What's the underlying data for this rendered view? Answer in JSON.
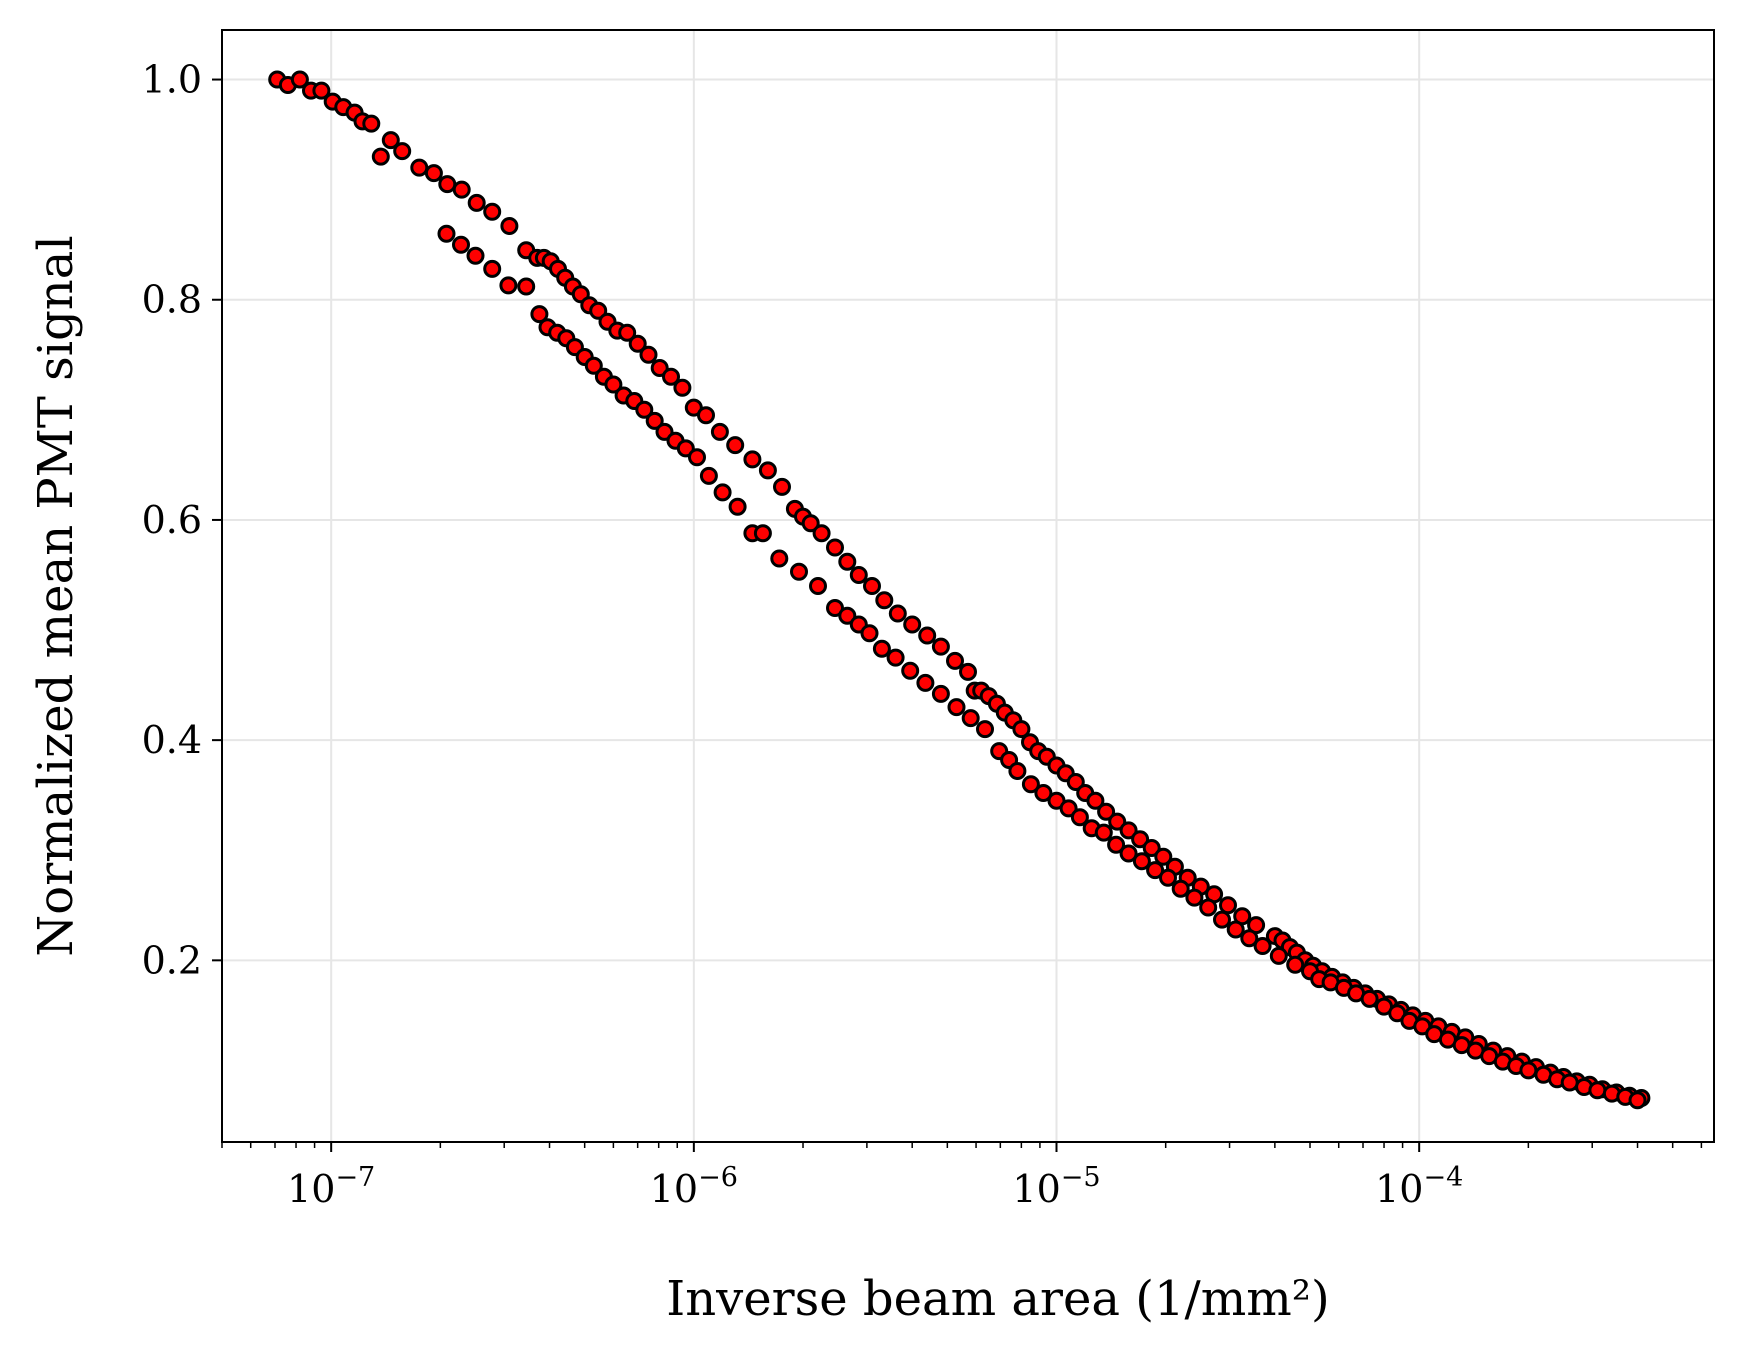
{
  "chart_data": {
    "type": "scatter",
    "title": "",
    "xlabel": "Inverse beam area (1/mm²)",
    "ylabel": "Normalized mean PMT signal",
    "xscale": "log",
    "xlim": [
      5e-08,
      0.00065
    ],
    "ylim": [
      0.035,
      1.045
    ],
    "grid": true,
    "legend": "none",
    "marker": {
      "face": "#ff0000",
      "edge": "#000000",
      "shape": "circle"
    },
    "x_ticks": [
      {
        "value": 1e-07,
        "label_base": "10",
        "label_exp": "−7"
      },
      {
        "value": 1e-06,
        "label_base": "10",
        "label_exp": "−6"
      },
      {
        "value": 1e-05,
        "label_base": "10",
        "label_exp": "−5"
      },
      {
        "value": 0.0001,
        "label_base": "10",
        "label_exp": "−4"
      }
    ],
    "y_ticks": [
      {
        "value": 0.2,
        "label": "0.2"
      },
      {
        "value": 0.4,
        "label": "0.4"
      },
      {
        "value": 0.6,
        "label": "0.6"
      },
      {
        "value": 0.8,
        "label": "0.8"
      },
      {
        "value": 1.0,
        "label": "1.0"
      }
    ],
    "series": [
      {
        "points": [
          [
            7.1e-08,
            1.0
          ],
          [
            7.6e-08,
            0.995
          ],
          [
            8.2e-08,
            1.0
          ],
          [
            8.8e-08,
            0.99
          ],
          [
            9.4e-08,
            0.99
          ],
          [
            1.01e-07,
            0.98
          ],
          [
            1.08e-07,
            0.975
          ],
          [
            1.16e-07,
            0.97
          ],
          [
            1.22e-07,
            0.962
          ],
          [
            1.29e-07,
            0.96
          ],
          [
            1.37e-07,
            0.93
          ],
          [
            1.46e-07,
            0.945
          ],
          [
            1.57e-07,
            0.935
          ],
          [
            1.75e-07,
            0.92
          ],
          [
            1.92e-07,
            0.915
          ],
          [
            2.09e-07,
            0.905
          ],
          [
            2.29e-07,
            0.9
          ],
          [
            2.52e-07,
            0.888
          ],
          [
            2.78e-07,
            0.88
          ],
          [
            3.1e-07,
            0.867
          ],
          [
            3.45e-07,
            0.845
          ],
          [
            3.7e-07,
            0.838
          ],
          [
            3.86e-07,
            0.838
          ],
          [
            4.03e-07,
            0.835
          ],
          [
            4.22e-07,
            0.828
          ],
          [
            4.42e-07,
            0.82
          ],
          [
            4.64e-07,
            0.812
          ],
          [
            4.88e-07,
            0.805
          ],
          [
            5.15e-07,
            0.795
          ],
          [
            5.45e-07,
            0.79
          ],
          [
            5.78e-07,
            0.78
          ],
          [
            6.15e-07,
            0.772
          ],
          [
            6.55e-07,
            0.77
          ],
          [
            7e-07,
            0.76
          ],
          [
            7.5e-07,
            0.75
          ],
          [
            8.05e-07,
            0.738
          ],
          [
            8.65e-07,
            0.73
          ],
          [
            9.3e-07,
            0.72
          ],
          [
            1e-06,
            0.702
          ],
          [
            1.08e-06,
            0.695
          ],
          [
            1.18e-06,
            0.68
          ],
          [
            1.3e-06,
            0.668
          ],
          [
            1.45e-06,
            0.655
          ],
          [
            1.6e-06,
            0.645
          ],
          [
            1.75e-06,
            0.63
          ],
          [
            1.9e-06,
            0.61
          ],
          [
            2e-06,
            0.603
          ],
          [
            2.1e-06,
            0.597
          ],
          [
            2.25e-06,
            0.588
          ],
          [
            2.45e-06,
            0.575
          ],
          [
            2.65e-06,
            0.562
          ],
          [
            2.85e-06,
            0.55
          ],
          [
            3.1e-06,
            0.54
          ],
          [
            3.35e-06,
            0.527
          ],
          [
            3.65e-06,
            0.515
          ],
          [
            4e-06,
            0.505
          ],
          [
            4.4e-06,
            0.495
          ],
          [
            4.8e-06,
            0.485
          ],
          [
            5.25e-06,
            0.472
          ],
          [
            5.7e-06,
            0.462
          ],
          [
            5.95e-06,
            0.445
          ],
          [
            6.2e-06,
            0.445
          ],
          [
            6.5e-06,
            0.44
          ],
          [
            6.85e-06,
            0.433
          ],
          [
            7.2e-06,
            0.425
          ],
          [
            7.6e-06,
            0.418
          ],
          [
            8e-06,
            0.41
          ],
          [
            8.45e-06,
            0.398
          ],
          [
            8.9e-06,
            0.39
          ],
          [
            9.4e-06,
            0.385
          ],
          [
            1e-05,
            0.377
          ],
          [
            1.06e-05,
            0.37
          ],
          [
            1.13e-05,
            0.362
          ],
          [
            1.2e-05,
            0.352
          ],
          [
            1.28e-05,
            0.345
          ],
          [
            1.37e-05,
            0.335
          ],
          [
            1.47e-05,
            0.326
          ],
          [
            1.58e-05,
            0.318
          ],
          [
            1.7e-05,
            0.31
          ],
          [
            1.83e-05,
            0.302
          ],
          [
            1.97e-05,
            0.294
          ],
          [
            2.12e-05,
            0.285
          ],
          [
            2.3e-05,
            0.275
          ],
          [
            2.5e-05,
            0.267
          ],
          [
            2.72e-05,
            0.26
          ],
          [
            2.97e-05,
            0.25
          ],
          [
            3.25e-05,
            0.24
          ],
          [
            3.55e-05,
            0.232
          ],
          [
            4e-05,
            0.222
          ],
          [
            4.2e-05,
            0.218
          ],
          [
            4.4e-05,
            0.212
          ],
          [
            4.6e-05,
            0.207
          ],
          [
            4.85e-05,
            0.2
          ],
          [
            5.1e-05,
            0.195
          ],
          [
            5.4e-05,
            0.19
          ],
          [
            5.75e-05,
            0.185
          ],
          [
            6.15e-05,
            0.18
          ],
          [
            6.6e-05,
            0.175
          ],
          [
            7.1e-05,
            0.17
          ],
          [
            7.65e-05,
            0.165
          ],
          [
            8.25e-05,
            0.16
          ],
          [
            8.9e-05,
            0.155
          ],
          [
            9.6e-05,
            0.15
          ],
          [
            0.000104,
            0.145
          ],
          [
            0.000113,
            0.14
          ],
          [
            0.000123,
            0.135
          ],
          [
            0.000134,
            0.13
          ],
          [
            0.000146,
            0.124
          ],
          [
            0.00016,
            0.118
          ],
          [
            0.000175,
            0.113
          ],
          [
            0.000192,
            0.108
          ],
          [
            0.00021,
            0.103
          ],
          [
            0.00023,
            0.098
          ],
          [
            0.00025,
            0.094
          ],
          [
            0.000272,
            0.09
          ],
          [
            0.000295,
            0.087
          ],
          [
            0.00032,
            0.083
          ],
          [
            0.00035,
            0.08
          ],
          [
            0.00038,
            0.077
          ],
          [
            0.00041,
            0.075
          ]
        ]
      },
      {
        "points": [
          [
            2.08e-07,
            0.86
          ],
          [
            2.28e-07,
            0.85
          ],
          [
            2.5e-07,
            0.84
          ],
          [
            2.78e-07,
            0.828
          ],
          [
            3.08e-07,
            0.813
          ],
          [
            3.45e-07,
            0.812
          ],
          [
            3.75e-07,
            0.787
          ],
          [
            3.95e-07,
            0.775
          ],
          [
            4.2e-07,
            0.77
          ],
          [
            4.45e-07,
            0.765
          ],
          [
            4.7e-07,
            0.757
          ],
          [
            5e-07,
            0.748
          ],
          [
            5.3e-07,
            0.74
          ],
          [
            5.65e-07,
            0.73
          ],
          [
            6e-07,
            0.723
          ],
          [
            6.4e-07,
            0.713
          ],
          [
            6.85e-07,
            0.708
          ],
          [
            7.3e-07,
            0.7
          ],
          [
            7.8e-07,
            0.69
          ],
          [
            8.3e-07,
            0.68
          ],
          [
            8.9e-07,
            0.672
          ],
          [
            9.5e-07,
            0.665
          ],
          [
            1.02e-06,
            0.657
          ],
          [
            1.1e-06,
            0.64
          ],
          [
            1.2e-06,
            0.625
          ],
          [
            1.32e-06,
            0.612
          ],
          [
            1.45e-06,
            0.588
          ],
          [
            1.55e-06,
            0.588
          ],
          [
            1.72e-06,
            0.565
          ],
          [
            1.95e-06,
            0.553
          ],
          [
            2.2e-06,
            0.54
          ],
          [
            2.45e-06,
            0.52
          ],
          [
            2.65e-06,
            0.513
          ],
          [
            2.85e-06,
            0.505
          ],
          [
            3.05e-06,
            0.497
          ],
          [
            3.3e-06,
            0.483
          ],
          [
            3.6e-06,
            0.475
          ],
          [
            3.95e-06,
            0.463
          ],
          [
            4.35e-06,
            0.452
          ],
          [
            4.8e-06,
            0.442
          ],
          [
            5.3e-06,
            0.43
          ],
          [
            5.8e-06,
            0.42
          ],
          [
            6.35e-06,
            0.41
          ],
          [
            6.95e-06,
            0.39
          ],
          [
            7.4e-06,
            0.382
          ],
          [
            7.8e-06,
            0.372
          ],
          [
            8.5e-06,
            0.36
          ],
          [
            9.2e-06,
            0.352
          ],
          [
            1e-05,
            0.345
          ],
          [
            1.08e-05,
            0.338
          ],
          [
            1.16e-05,
            0.33
          ],
          [
            1.25e-05,
            0.32
          ],
          [
            1.35e-05,
            0.316
          ],
          [
            1.46e-05,
            0.305
          ],
          [
            1.58e-05,
            0.297
          ],
          [
            1.72e-05,
            0.29
          ],
          [
            1.87e-05,
            0.282
          ],
          [
            2.03e-05,
            0.275
          ],
          [
            2.2e-05,
            0.265
          ],
          [
            2.4e-05,
            0.257
          ],
          [
            2.62e-05,
            0.248
          ],
          [
            2.86e-05,
            0.237
          ],
          [
            3.12e-05,
            0.228
          ],
          [
            3.4e-05,
            0.22
          ],
          [
            3.7e-05,
            0.213
          ],
          [
            4.1e-05,
            0.204
          ],
          [
            4.55e-05,
            0.196
          ],
          [
            5e-05,
            0.19
          ],
          [
            5.3e-05,
            0.183
          ],
          [
            5.7e-05,
            0.18
          ],
          [
            6.2e-05,
            0.175
          ],
          [
            6.7e-05,
            0.17
          ],
          [
            7.3e-05,
            0.165
          ],
          [
            8e-05,
            0.158
          ],
          [
            8.7e-05,
            0.152
          ],
          [
            9.4e-05,
            0.145
          ],
          [
            0.000102,
            0.14
          ],
          [
            0.00011,
            0.133
          ],
          [
            0.00012,
            0.128
          ],
          [
            0.000131,
            0.123
          ],
          [
            0.000143,
            0.118
          ],
          [
            0.000156,
            0.113
          ],
          [
            0.00017,
            0.108
          ],
          [
            0.000185,
            0.104
          ],
          [
            0.0002,
            0.1
          ],
          [
            0.00022,
            0.096
          ],
          [
            0.00024,
            0.092
          ],
          [
            0.00026,
            0.089
          ],
          [
            0.000285,
            0.085
          ],
          [
            0.00031,
            0.082
          ],
          [
            0.00034,
            0.079
          ],
          [
            0.00037,
            0.076
          ],
          [
            0.0004,
            0.073
          ]
        ]
      }
    ]
  }
}
